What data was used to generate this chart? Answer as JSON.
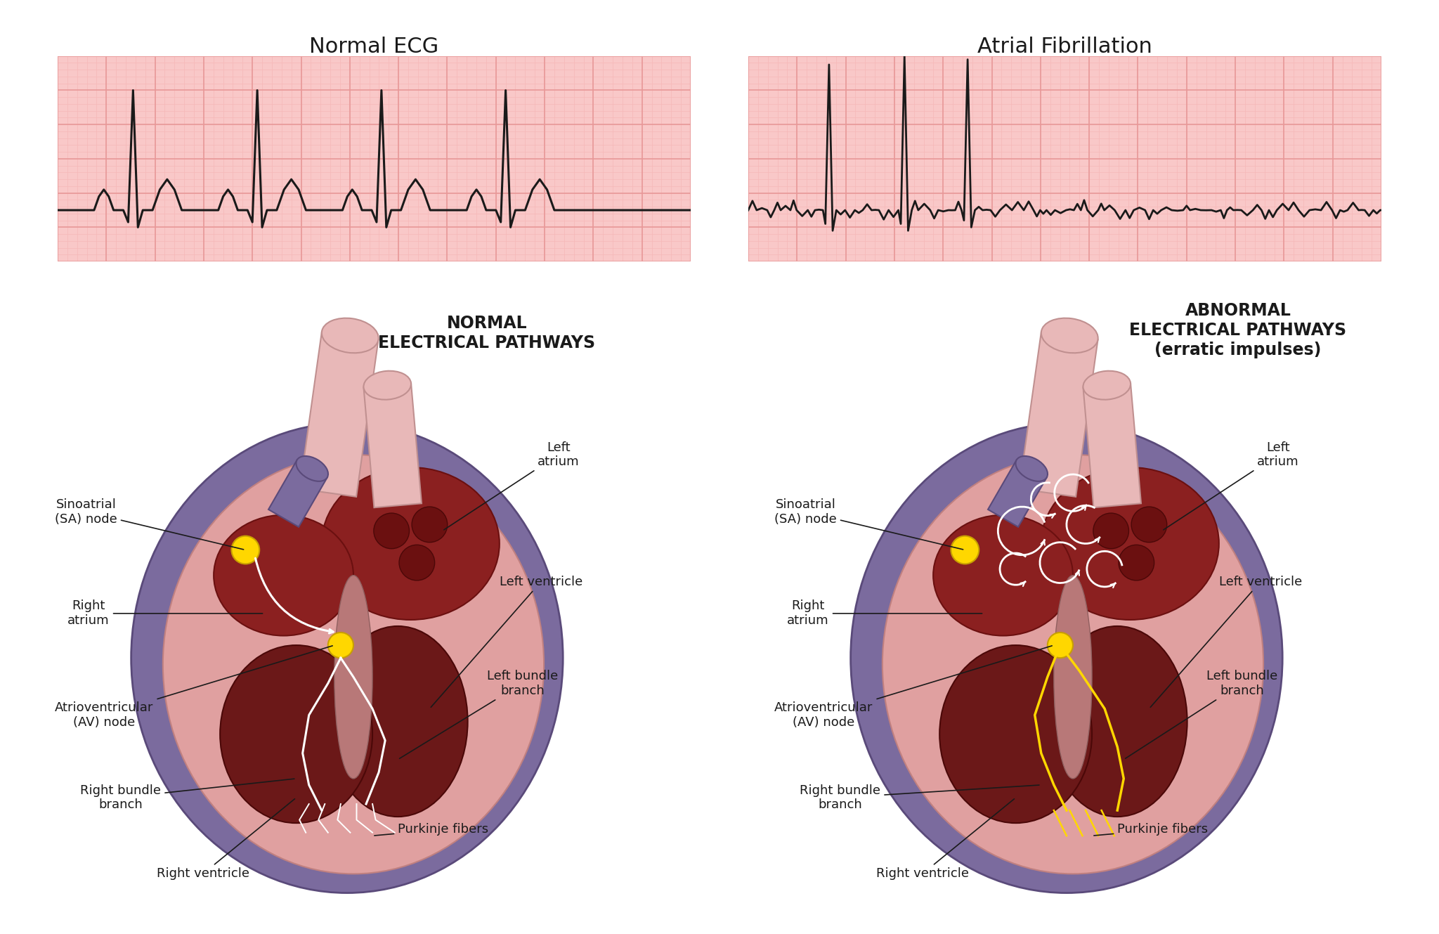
{
  "title_left": "Normal ECG",
  "title_right": "Atrial Fibrillation",
  "label_left_heading": "NORMAL\nELECTRICAL PATHWAYS",
  "label_right_heading": "ABNORMAL\nELECTRICAL PATHWAYS\n(erratic impulses)",
  "background_color": "#ffffff",
  "ecg_grid_bg": "#f9c8c8",
  "ecg_grid_major": "#e89898",
  "ecg_grid_minor": "#f5b8b8",
  "ecg_line_color": "#1a1a1a",
  "label_color": "#1a1a1a",
  "title_fontsize": 22,
  "heading_fontsize": 17,
  "label_fontsize": 13
}
